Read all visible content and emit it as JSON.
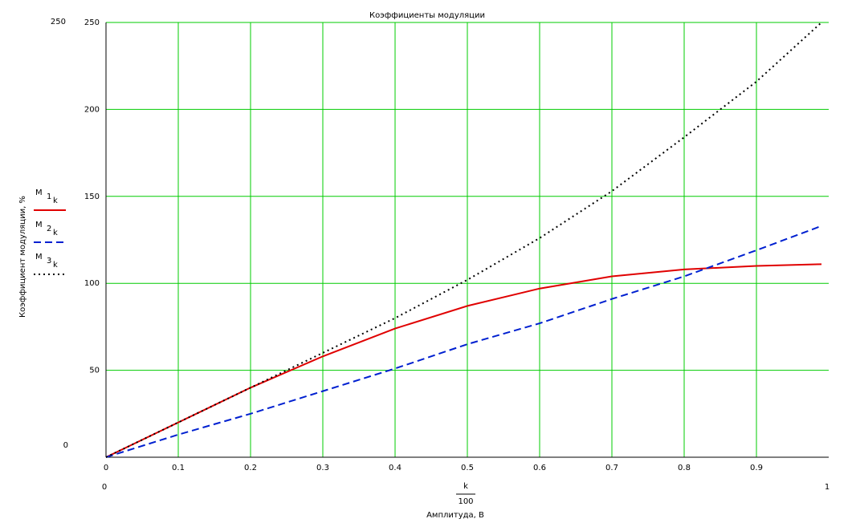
{
  "chart_data": {
    "type": "line",
    "title": "Коэффициенты модуляции",
    "ylabel": "Коэффициент модуляции, %",
    "xlabel": "Амплитуда, В",
    "x_expression": {
      "numerator": "k",
      "denominator": "100"
    },
    "x": [
      0,
      0.1,
      0.2,
      0.3,
      0.4,
      0.5,
      0.6,
      0.7,
      0.8,
      0.9,
      0.99
    ],
    "series": [
      {
        "name": "M",
        "label_index": "1",
        "label_sub": "k",
        "color": "#e00000",
        "style": "solid",
        "values": [
          0,
          20,
          40,
          58,
          74,
          87,
          97,
          104,
          108,
          110,
          111
        ]
      },
      {
        "name": "M",
        "label_index": "2",
        "label_sub": "k",
        "color": "#0020d0",
        "style": "dash",
        "values": [
          0,
          13,
          25,
          38,
          51,
          65,
          77,
          91,
          104,
          119,
          133
        ]
      },
      {
        "name": "M",
        "label_index": "3",
        "label_sub": "k",
        "color": "#000000",
        "style": "dot",
        "values": [
          0,
          20,
          40,
          60,
          80,
          102,
          126,
          153,
          184,
          216,
          250
        ]
      }
    ],
    "xlim": [
      0,
      1
    ],
    "ylim": [
      0,
      250
    ],
    "xticks": [
      0,
      0.1,
      0.2,
      0.3,
      0.4,
      0.5,
      0.6,
      0.7,
      0.8,
      0.9
    ],
    "yticks": [
      50,
      100,
      150,
      200,
      250
    ],
    "grid": true,
    "grid_color": "#00cc00"
  }
}
